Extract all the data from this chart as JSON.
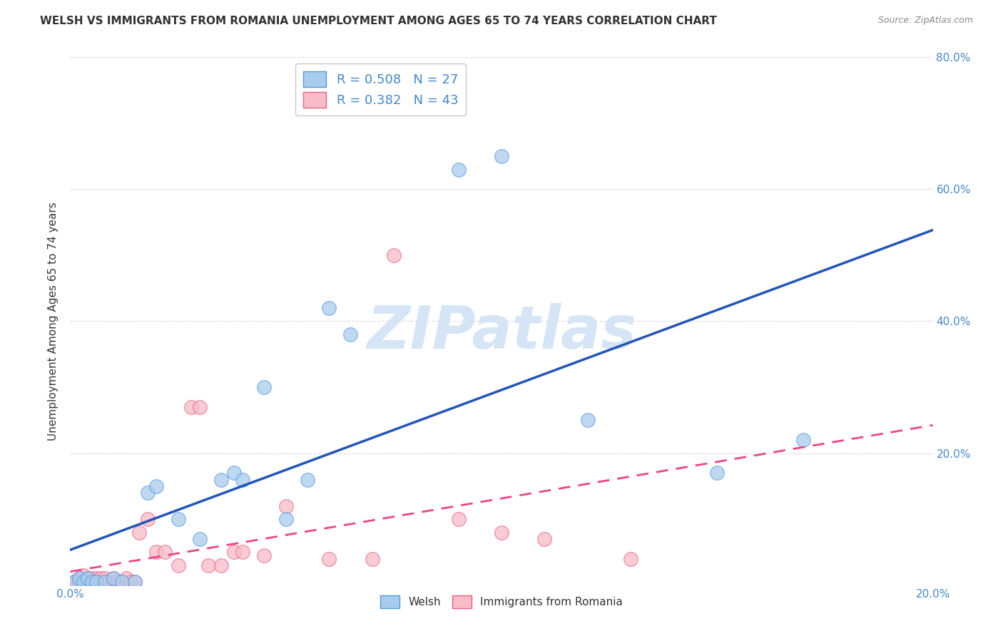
{
  "title": "WELSH VS IMMIGRANTS FROM ROMANIA UNEMPLOYMENT AMONG AGES 65 TO 74 YEARS CORRELATION CHART",
  "source": "Source: ZipAtlas.com",
  "ylabel": "Unemployment Among Ages 65 to 74 years",
  "x_min": 0.0,
  "x_max": 0.2,
  "y_min": 0.0,
  "y_max": 0.8,
  "welsh_color": "#A8CCEE",
  "welsh_edge_color": "#5599DD",
  "romania_color": "#F7BCC8",
  "romania_edge_color": "#E86080",
  "trend_blue": "#2255BB",
  "trend_pink": "#EE4488",
  "welsh_R": 0.508,
  "welsh_N": 27,
  "romania_R": 0.382,
  "romania_N": 43,
  "welsh_scatter_x": [
    0.001,
    0.002,
    0.003,
    0.004,
    0.005,
    0.006,
    0.008,
    0.01,
    0.012,
    0.015,
    0.018,
    0.02,
    0.025,
    0.03,
    0.035,
    0.038,
    0.04,
    0.045,
    0.05,
    0.055,
    0.06,
    0.065,
    0.09,
    0.1,
    0.12,
    0.15,
    0.17
  ],
  "welsh_scatter_y": [
    0.005,
    0.01,
    0.005,
    0.01,
    0.005,
    0.005,
    0.005,
    0.01,
    0.005,
    0.005,
    0.14,
    0.15,
    0.1,
    0.07,
    0.16,
    0.17,
    0.16,
    0.3,
    0.1,
    0.16,
    0.42,
    0.38,
    0.63,
    0.65,
    0.25,
    0.17,
    0.22
  ],
  "romania_scatter_x": [
    0.001,
    0.002,
    0.002,
    0.003,
    0.003,
    0.004,
    0.004,
    0.005,
    0.005,
    0.006,
    0.006,
    0.007,
    0.007,
    0.008,
    0.008,
    0.009,
    0.01,
    0.01,
    0.011,
    0.012,
    0.013,
    0.014,
    0.015,
    0.016,
    0.018,
    0.02,
    0.022,
    0.025,
    0.028,
    0.03,
    0.032,
    0.035,
    0.038,
    0.04,
    0.045,
    0.05,
    0.06,
    0.07,
    0.075,
    0.09,
    0.1,
    0.11,
    0.13
  ],
  "romania_scatter_y": [
    0.005,
    0.005,
    0.01,
    0.005,
    0.015,
    0.005,
    0.01,
    0.005,
    0.01,
    0.005,
    0.01,
    0.005,
    0.01,
    0.005,
    0.01,
    0.005,
    0.005,
    0.01,
    0.005,
    0.005,
    0.01,
    0.005,
    0.005,
    0.08,
    0.1,
    0.05,
    0.05,
    0.03,
    0.27,
    0.27,
    0.03,
    0.03,
    0.05,
    0.05,
    0.045,
    0.12,
    0.04,
    0.04,
    0.5,
    0.1,
    0.08,
    0.07,
    0.04
  ],
  "watermark": "ZIPatlas",
  "watermark_color": "#D5E5F5",
  "background_color": "#FFFFFF",
  "grid_color": "#CCCCCC",
  "marker_size": 200,
  "legend_fontsize": 13,
  "title_fontsize": 11,
  "axis_label_fontsize": 11,
  "tick_label_color": "#4488CC",
  "tick_label_size": 11
}
